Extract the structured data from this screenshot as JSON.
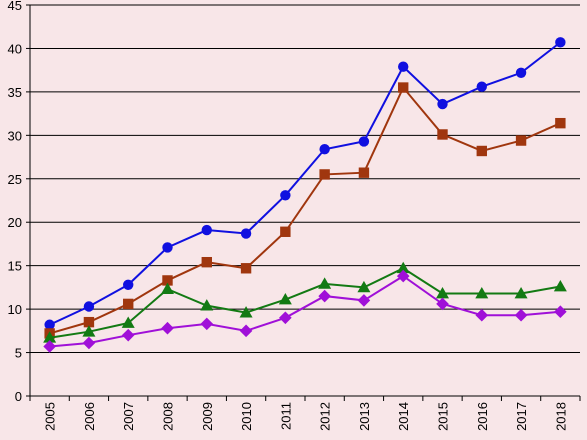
{
  "chart_data": {
    "type": "line",
    "title": "",
    "xlabel": "",
    "ylabel": "",
    "ylim": [
      0,
      45
    ],
    "yticks": [
      0,
      5,
      10,
      15,
      20,
      25,
      30,
      35,
      40,
      45
    ],
    "grid": "horizontal",
    "x": [
      "2005",
      "2006",
      "2007",
      "2008",
      "2009",
      "2010",
      "2011",
      "2012",
      "2013",
      "2014",
      "2015",
      "2016",
      "2017",
      "2018"
    ],
    "series": [
      {
        "color": "#1010e0",
        "marker": "circle",
        "values": [
          8.2,
          10.3,
          12.8,
          17.1,
          19.1,
          18.7,
          23.1,
          28.4,
          29.3,
          37.9,
          33.6,
          35.6,
          37.2,
          40.7
        ]
      },
      {
        "color": "#a0360e",
        "marker": "square",
        "values": [
          7.2,
          8.5,
          10.6,
          13.3,
          15.4,
          14.7,
          18.9,
          25.5,
          25.7,
          35.5,
          30.1,
          28.2,
          29.4,
          31.4
        ]
      },
      {
        "color": "#137a13",
        "marker": "triangle",
        "values": [
          6.7,
          7.4,
          8.4,
          12.3,
          10.4,
          9.6,
          11.1,
          12.9,
          12.5,
          14.7,
          11.8,
          11.8,
          11.8,
          12.6
        ]
      },
      {
        "color": "#a010d8",
        "marker": "diamond",
        "values": [
          5.7,
          6.1,
          7.0,
          7.8,
          8.3,
          7.5,
          9.0,
          11.5,
          11.0,
          13.8,
          10.6,
          9.3,
          9.3,
          9.7
        ]
      }
    ]
  }
}
